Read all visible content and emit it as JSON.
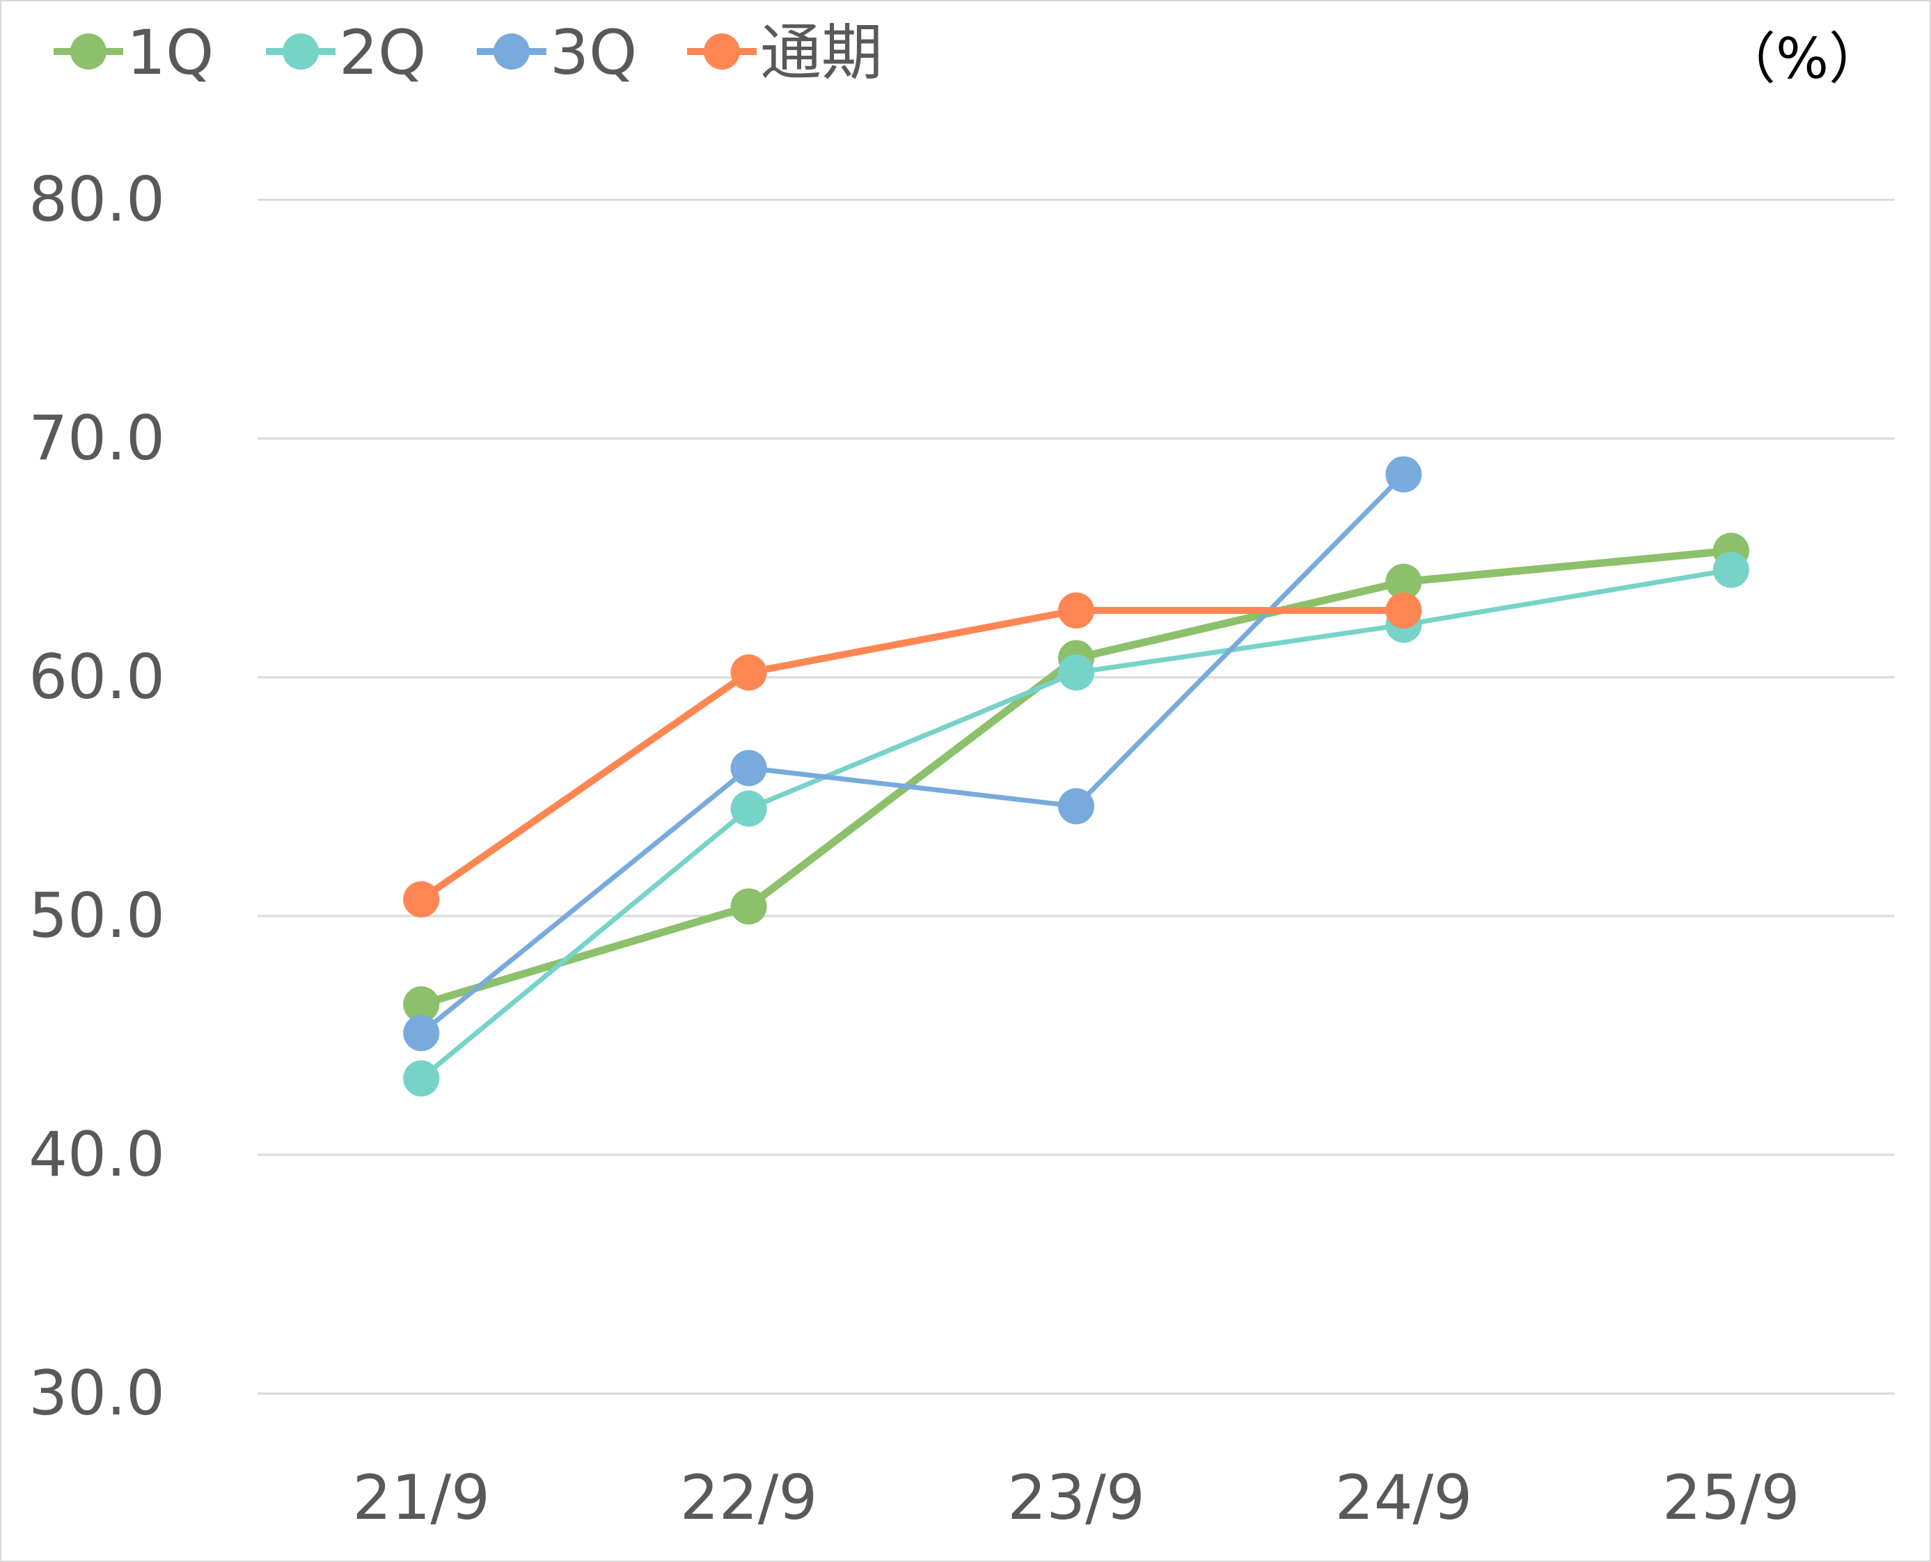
{
  "chart_data": {
    "type": "line",
    "unit": "（%）",
    "categories": [
      "21/9",
      "22/9",
      "23/9",
      "24/9",
      "25/9"
    ],
    "ylim": [
      30.0,
      80.0
    ],
    "yticks": [
      "30.0",
      "40.0",
      "50.0",
      "60.0",
      "70.0",
      "80.0"
    ],
    "grid": true,
    "legend_position": "top-left",
    "series": [
      {
        "name": "1Q",
        "color": "#8dc06a",
        "values": [
          46.3,
          50.4,
          60.8,
          64.0,
          65.3
        ]
      },
      {
        "name": "2Q",
        "color": "#76d3c8",
        "values": [
          43.2,
          54.5,
          60.2,
          62.2,
          64.5
        ]
      },
      {
        "name": "3Q",
        "color": "#78aadc",
        "values": [
          45.1,
          56.2,
          54.6,
          68.5,
          null
        ]
      },
      {
        "name": "通期",
        "color": "#fe8653",
        "values": [
          50.7,
          60.2,
          62.8,
          62.8,
          null
        ]
      }
    ]
  }
}
